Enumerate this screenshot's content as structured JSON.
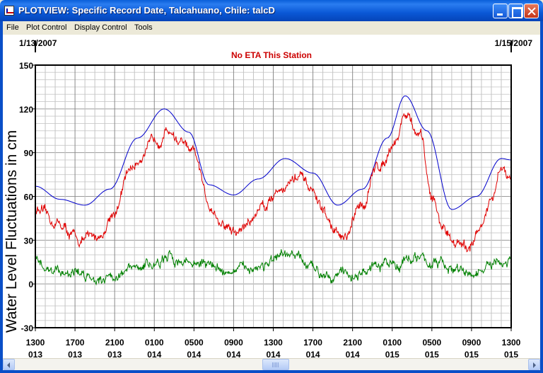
{
  "window": {
    "title": "PLOTVIEW: Specific Record Date, Talcahuano, Chile: talcD"
  },
  "menu": {
    "items": [
      "File",
      "Plot Control",
      "Display Control",
      "Tools"
    ]
  },
  "plot": {
    "start_date": "1/13/2007",
    "end_date": "1/15/2007",
    "status_message": "No ETA This Station"
  },
  "colors": {
    "predicted": "#0000CC",
    "observed": "#E00000",
    "residual": "#008000",
    "status": "#CC0000"
  },
  "chart_data": {
    "type": "line",
    "ylabel": "Water Level Fluctuations in cm",
    "ylim": [
      -30,
      150
    ],
    "y_ticks": [
      -30,
      0,
      30,
      60,
      90,
      120,
      150
    ],
    "x_range_hours": [
      0,
      48
    ],
    "x_ticks": [
      {
        "hour": 0,
        "time": "1300",
        "day": "013"
      },
      {
        "hour": 4,
        "time": "1700",
        "day": "013"
      },
      {
        "hour": 8,
        "time": "2100",
        "day": "013"
      },
      {
        "hour": 12,
        "time": "0100",
        "day": "014"
      },
      {
        "hour": 16,
        "time": "0500",
        "day": "014"
      },
      {
        "hour": 20,
        "time": "0900",
        "day": "014"
      },
      {
        "hour": 24,
        "time": "1300",
        "day": "014"
      },
      {
        "hour": 28,
        "time": "1700",
        "day": "014"
      },
      {
        "hour": 32,
        "time": "2100",
        "day": "014"
      },
      {
        "hour": 36,
        "time": "0100",
        "day": "015"
      },
      {
        "hour": 40,
        "time": "0500",
        "day": "015"
      },
      {
        "hour": 44,
        "time": "0900",
        "day": "015"
      },
      {
        "hour": 48,
        "time": "1300",
        "day": "015"
      }
    ],
    "series": [
      {
        "key": "predicted",
        "x": [
          0,
          2.5,
          5,
          7.5,
          10.3,
          13,
          15.5,
          17.5,
          20,
          22.5,
          25.2,
          28,
          30.5,
          33,
          35.5,
          37.3,
          39.5,
          42,
          44.5,
          47,
          48
        ],
        "y": [
          67,
          58,
          54,
          65,
          100,
          120,
          104,
          68,
          61,
          72,
          86,
          76,
          54,
          65,
          100,
          129,
          105,
          51,
          60,
          86,
          85
        ]
      },
      {
        "key": "observed",
        "x": [
          0,
          2,
          4.5,
          6.5,
          8,
          9.7,
          11,
          12.3,
          13.5,
          14.5,
          16,
          17.5,
          19,
          20.3,
          21.5,
          23,
          25,
          26.5,
          28,
          29,
          30,
          31.2,
          33,
          34.5,
          36.5,
          37.2,
          38.8,
          40,
          41,
          42.3,
          43.5,
          44.5,
          46,
          47,
          48
        ],
        "y": [
          51,
          42,
          30,
          33,
          50,
          80,
          90,
          100,
          106,
          98,
          88,
          55,
          40,
          35,
          42,
          55,
          67,
          73,
          63,
          50,
          38,
          30,
          55,
          80,
          100,
          117,
          100,
          60,
          40,
          30,
          23,
          35,
          55,
          78,
          70
        ]
      },
      {
        "key": "residual",
        "x": [
          0,
          2,
          4,
          6,
          8,
          10,
          12,
          14,
          16,
          18,
          20,
          22,
          24,
          26,
          28,
          30,
          32,
          34,
          36,
          38,
          40,
          42,
          44,
          46,
          48
        ],
        "y": [
          14,
          10,
          8,
          5,
          6,
          10,
          14,
          17,
          15,
          12,
          8,
          12,
          15,
          19,
          10,
          8,
          6,
          10,
          14,
          18,
          15,
          10,
          6,
          12,
          14
        ]
      }
    ]
  }
}
